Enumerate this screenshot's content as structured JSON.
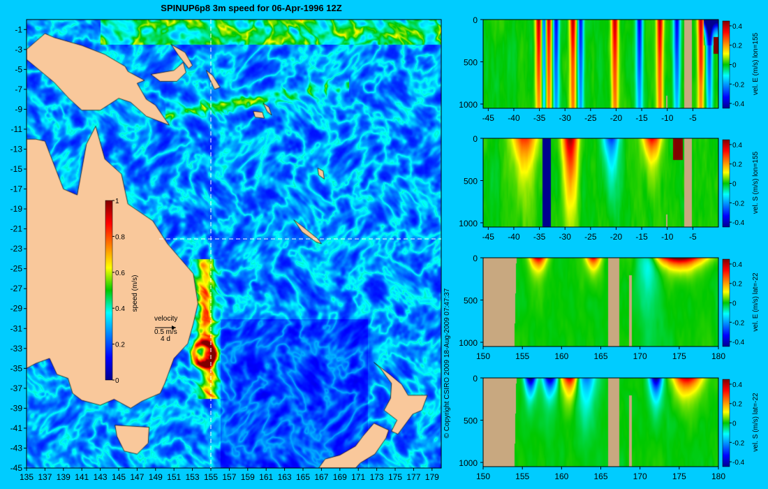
{
  "title": "SPINUP6p8 3m speed for 06-Apr-1996 12Z",
  "copyright": "© Copyright CSIRO 2009   18-Aug-2009 07:47:37",
  "colors": {
    "background": "#00ccff",
    "land": "#f9c89b",
    "section_land": "#c8a880"
  },
  "chart_data": [
    {
      "type": "heatmap",
      "name": "map",
      "title": "SPINUP6p8 3m speed for 06-Apr-1996 12Z",
      "x_ticks": [
        "135",
        "137",
        "139",
        "141",
        "143",
        "145",
        "147",
        "149",
        "151",
        "153",
        "155",
        "157",
        "159",
        "161",
        "163",
        "165",
        "167",
        "169",
        "171",
        "173",
        "175",
        "177",
        "179"
      ],
      "y_ticks": [
        "-1",
        "-3",
        "-5",
        "-7",
        "-9",
        "-11",
        "-13",
        "-15",
        "-17",
        "-19",
        "-21",
        "-23",
        "-25",
        "-27",
        "-29",
        "-31",
        "-33",
        "-35",
        "-37",
        "-39",
        "-41",
        "-43",
        "-45"
      ],
      "xlim": [
        135,
        180
      ],
      "ylim": [
        -45,
        0
      ],
      "colorbar": {
        "label": "speed (m/s)",
        "ticks": [
          "1",
          "0.8",
          "0.6",
          "0.4",
          "0.2",
          "0"
        ],
        "range": [
          0,
          1
        ]
      },
      "velocity_legend": {
        "label": "velocity",
        "speed": "0.5 m/s",
        "duration": "4 d"
      },
      "section_lines": {
        "lon": 155,
        "lat": -22
      }
    },
    {
      "type": "heatmap",
      "name": "section-1",
      "cbar_label": "vel. E (m/s) lon=155",
      "x_ticks": [
        "-45",
        "-40",
        "-35",
        "-30",
        "-25",
        "-20",
        "-15",
        "-10",
        "-5"
      ],
      "x_values": [
        -45,
        -40,
        -35,
        -30,
        -25,
        -20,
        -15,
        -10,
        -5
      ],
      "xlim": [
        -46,
        0
      ],
      "y_ticks": [
        "0",
        "500",
        "1000"
      ],
      "ylim": [
        0,
        1050
      ],
      "cbar_ticks": [
        "0.4",
        "0.2",
        "0",
        "-0.2",
        "-0.4"
      ],
      "range": [
        -0.45,
        0.45
      ]
    },
    {
      "type": "heatmap",
      "name": "section-2",
      "cbar_label": "vel. S (m/s) lon=155",
      "x_ticks": [
        "-45",
        "-40",
        "-35",
        "-30",
        "-25",
        "-20",
        "-15",
        "-10",
        "-5"
      ],
      "x_values": [
        -45,
        -40,
        -35,
        -30,
        -25,
        -20,
        -15,
        -10,
        -5
      ],
      "xlim": [
        -46,
        0
      ],
      "y_ticks": [
        "0",
        "500",
        "1000"
      ],
      "ylim": [
        0,
        1050
      ],
      "cbar_ticks": [
        "0.4",
        "0.2",
        "0",
        "-0.2",
        "-0.4"
      ],
      "range": [
        -0.45,
        0.45
      ]
    },
    {
      "type": "heatmap",
      "name": "section-3",
      "cbar_label": "vel. E (m/s) lat=-22",
      "x_ticks": [
        "150",
        "155",
        "160",
        "165",
        "170",
        "175",
        "180"
      ],
      "x_values": [
        150,
        155,
        160,
        165,
        170,
        175,
        180
      ],
      "xlim": [
        150,
        180
      ],
      "y_ticks": [
        "0",
        "500",
        "1000"
      ],
      "ylim": [
        0,
        1050
      ],
      "cbar_ticks": [
        "0.4",
        "0.2",
        "0",
        "-0.2",
        "-0.4"
      ],
      "range": [
        -0.45,
        0.45
      ]
    },
    {
      "type": "heatmap",
      "name": "section-4",
      "cbar_label": "vel. S (m/s) lat=-22",
      "x_ticks": [
        "150",
        "155",
        "160",
        "165",
        "170",
        "175",
        "180"
      ],
      "x_values": [
        150,
        155,
        160,
        165,
        170,
        175,
        180
      ],
      "xlim": [
        150,
        180
      ],
      "y_ticks": [
        "0",
        "500",
        "1000"
      ],
      "ylim": [
        0,
        1050
      ],
      "cbar_ticks": [
        "0.4",
        "0.2",
        "0",
        "-0.2",
        "-0.4"
      ],
      "range": [
        -0.45,
        0.45
      ]
    }
  ]
}
